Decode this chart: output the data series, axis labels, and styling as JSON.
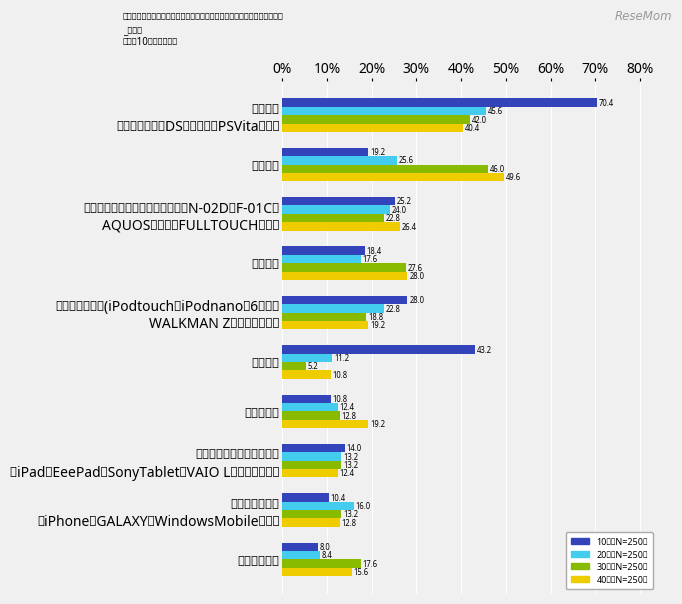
{
  "title_line1": "◆あなた自身やあなたの家庭で所有しているタッチパネル製品（複数回答",
  "title_line2": "_年代別",
  "title_line3": "※上位10位までを抜粋",
  "watermark": "ReseMom",
  "categories": [
    "ゲーム機\n（ニンテンドーDSシリーズ、PSVitaなど）",
    "カーナビ",
    "携帯電話：スマートフォン以外（N-02D、F-01C、\nAQUOSケータイFULLTOUCHなど）",
    "デジカメ",
    "音楽プレイヤー(iPodtouch、iPodnano第6世代、\nWALKMAN Zシリーズなど）",
    "電子辞書",
    "プリンター",
    "タブレット端末・パソコン\n（iPad、EeePad、SonyTablet、VAIO Lシリーズなど）",
    "スマートフォン\n（iPhone、GALAXY、WindowsMobileなど）",
    "ビデオカメラ"
  ],
  "values_10": [
    70.4,
    19.2,
    25.2,
    18.4,
    28.0,
    43.2,
    10.8,
    14.0,
    10.4,
    8.0
  ],
  "values_20": [
    45.6,
    25.6,
    24.0,
    17.6,
    22.8,
    11.2,
    12.4,
    13.2,
    16.0,
    8.4
  ],
  "values_30": [
    42.0,
    46.0,
    22.8,
    27.6,
    18.8,
    5.2,
    12.8,
    13.2,
    13.2,
    17.6
  ],
  "values_40": [
    40.4,
    49.6,
    26.4,
    28.0,
    19.2,
    10.8,
    19.2,
    12.4,
    12.8,
    15.6
  ],
  "colors_10": "#3344bb",
  "colors_20": "#44ccee",
  "colors_30": "#88bb00",
  "colors_40": "#eecc00",
  "legend_labels": [
    "10代『N=250』",
    "20代『N=250』",
    "30代『N=250』",
    "40代『N=250』"
  ],
  "xtick_vals": [
    0,
    10,
    20,
    30,
    40,
    50,
    60,
    70,
    80
  ],
  "bar_height": 0.17,
  "background_color": "#f0f0f0"
}
